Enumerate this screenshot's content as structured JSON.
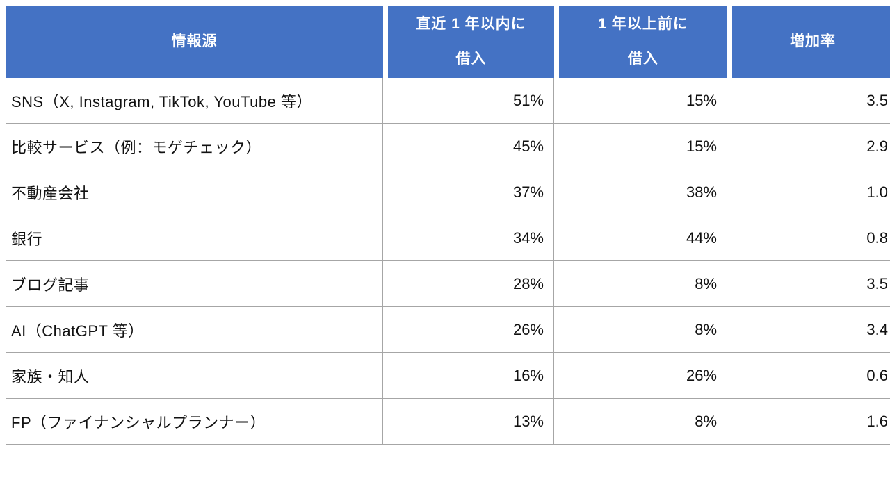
{
  "colors": {
    "header_bg": "#4472C4",
    "header_text": "#FFFFFF",
    "border": "#A6A6A6",
    "body_text": "#111111"
  },
  "table": {
    "headers": {
      "source": "情報源",
      "recent": "直近 1 年以内に\n借入",
      "past": "1 年以上前に\n借入",
      "rate": "増加率"
    },
    "rows": [
      {
        "source": "SNS（X, Instagram, TikTok, YouTube 等）",
        "recent": "51%",
        "past": "15%",
        "rate": "3.5"
      },
      {
        "source": "比較サービス（例：モゲチェック）",
        "recent": "45%",
        "past": "15%",
        "rate": "2.9"
      },
      {
        "source": "不動産会社",
        "recent": "37%",
        "past": "38%",
        "rate": "1.0"
      },
      {
        "source": "銀行",
        "recent": "34%",
        "past": "44%",
        "rate": "0.8"
      },
      {
        "source": "ブログ記事",
        "recent": "28%",
        "past": "8%",
        "rate": "3.5"
      },
      {
        "source": "AI（ChatGPT 等）",
        "recent": "26%",
        "past": "8%",
        "rate": "3.4"
      },
      {
        "source": "家族・知人",
        "recent": "16%",
        "past": "26%",
        "rate": "0.6"
      },
      {
        "source": "FP（ファイナンシャルプランナー）",
        "recent": "13%",
        "past": "8%",
        "rate": "1.6"
      }
    ]
  },
  "chart_data": {
    "type": "table",
    "columns": [
      "情報源",
      "直近1年以内に借入",
      "1年以上前に借入",
      "増加率"
    ],
    "rows": [
      [
        "SNS（X, Instagram, TikTok, YouTube 等）",
        "51%",
        "15%",
        "3.5"
      ],
      [
        "比較サービス（例：モゲチェック）",
        "45%",
        "15%",
        "2.9"
      ],
      [
        "不動産会社",
        "37%",
        "38%",
        "1.0"
      ],
      [
        "銀行",
        "34%",
        "44%",
        "0.8"
      ],
      [
        "ブログ記事",
        "28%",
        "8%",
        "3.5"
      ],
      [
        "AI（ChatGPT 等）",
        "26%",
        "8%",
        "3.4"
      ],
      [
        "家族・知人",
        "16%",
        "26%",
        "0.6"
      ],
      [
        "FP（ファイナンシャルプランナー）",
        "13%",
        "8%",
        "1.6"
      ]
    ]
  }
}
